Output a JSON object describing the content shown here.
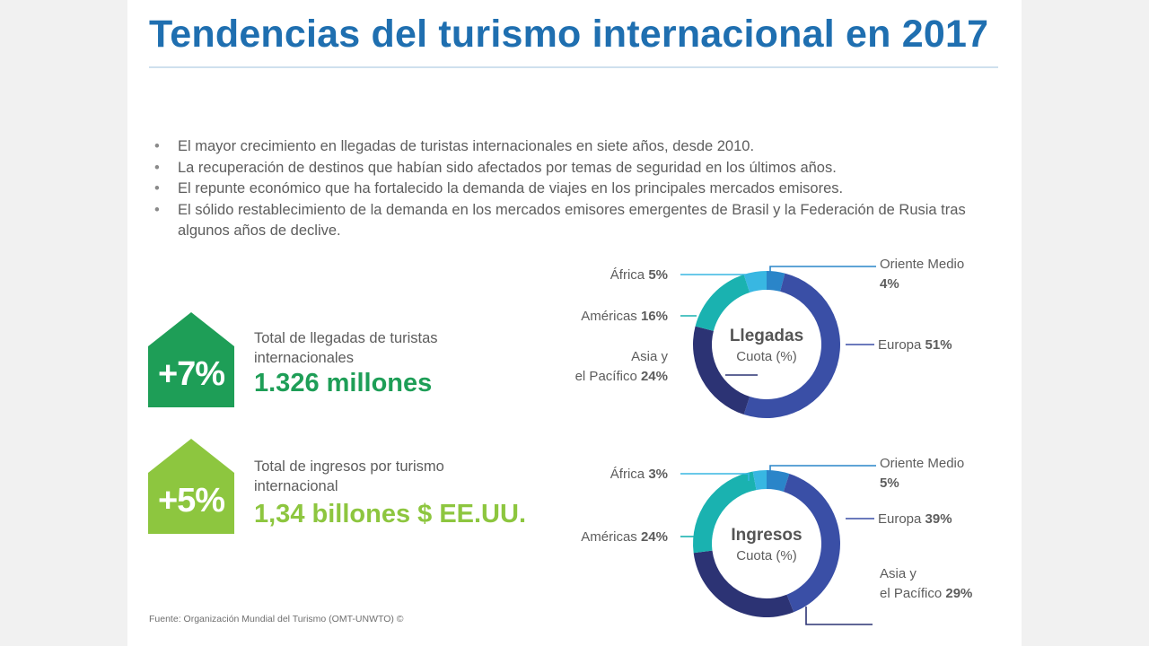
{
  "title": "Tendencias del turismo internacional en 2017",
  "bullets": [
    "El mayor crecimiento en llegadas de turistas internacionales en siete años, desde 2010.",
    "La recuperación de destinos que habían sido afectados por temas de seguridad en los últimos años.",
    "El repunte económico que ha fortalecido la demanda de viajes en los principales mercados emisores.",
    "El sólido restablecimiento de la demanda en los mercados emisores emergentes de Brasil y la Federación de Rusia tras algunos años de declive."
  ],
  "stats": [
    {
      "percent": "+7%",
      "label": "Total de llegadas de turistas internacionales",
      "value": "1.326 millones",
      "color": "#1e9e57"
    },
    {
      "percent": "+5%",
      "label": "Total de ingresos por turismo internacional",
      "value": "1,34 billones $ EE.UU.",
      "color": "#8dc63f"
    }
  ],
  "source": "Fuente: Organización Mundial del Turismo (OMT-UNWTO) ©",
  "chart_data": [
    {
      "type": "pie",
      "title": "Llegadas",
      "subtitle": "Cuota (%)",
      "slices": [
        {
          "label": "Oriente Medio",
          "name": "Oriente Medio",
          "value": 4,
          "color": "#2a85c9"
        },
        {
          "label": "Europa",
          "name": "Europa",
          "value": 51,
          "color": "#3a4fa6"
        },
        {
          "label": "Asia y el Pacífico",
          "name": "Asia y",
          "name2": "el Pacífico",
          "value": 24,
          "color": "#2c3374"
        },
        {
          "label": "Américas",
          "name": "Américas",
          "value": 16,
          "color": "#1ab2b0"
        },
        {
          "label": "África",
          "name": "África",
          "value": 5,
          "color": "#38b7e2"
        }
      ]
    },
    {
      "type": "pie",
      "title": "Ingresos",
      "subtitle": "Cuota (%)",
      "slices": [
        {
          "label": "Oriente Medio",
          "name": "Oriente Medio",
          "value": 5,
          "color": "#2a85c9"
        },
        {
          "label": "Europa",
          "name": "Europa",
          "value": 39,
          "color": "#3a4fa6"
        },
        {
          "label": "Asia y el Pacífico",
          "name": "Asia y",
          "name2": "el Pacífico",
          "value": 29,
          "color": "#2c3374"
        },
        {
          "label": "Américas",
          "name": "Américas",
          "value": 24,
          "color": "#1ab2b0"
        },
        {
          "label": "África",
          "name": "África",
          "value": 3,
          "color": "#38b7e2"
        }
      ]
    }
  ]
}
